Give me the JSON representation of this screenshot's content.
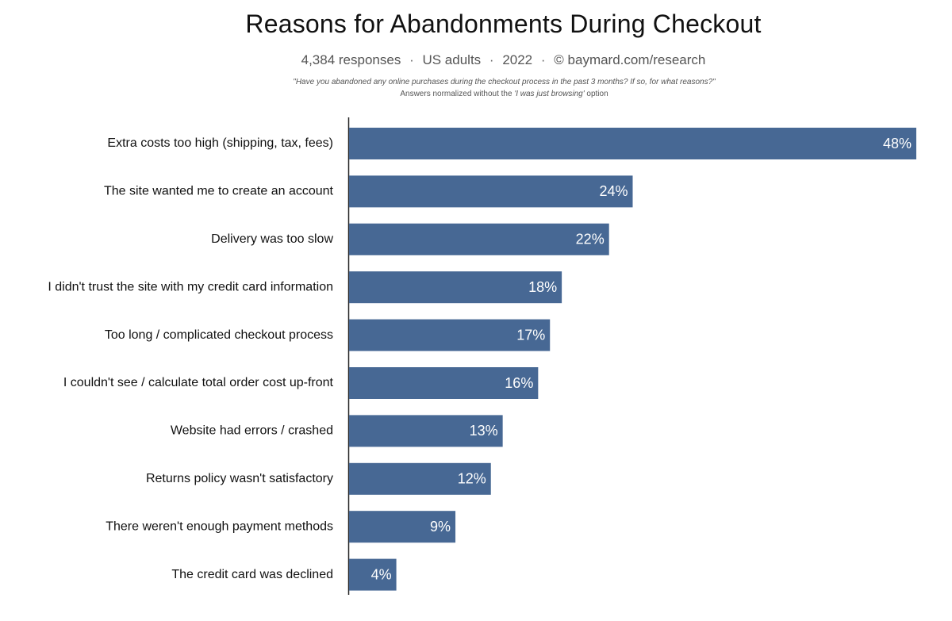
{
  "header": {
    "title": "Reasons for Abandonments During Checkout",
    "subtitle_parts": [
      "4,384 responses",
      "US adults",
      "2022",
      "© baymard.com/research"
    ],
    "separator": "·",
    "question": "\"Have you abandoned any online purchases during the checkout process in the past 3 months? If so, for what reasons?\"",
    "note_before": "Answers normalized without the ",
    "note_emphasis": "'I was just browsing'",
    "note_after": " option"
  },
  "chart_data": {
    "type": "bar",
    "orientation": "horizontal",
    "title": "Reasons for Abandonments During Checkout",
    "categories": [
      "Extra costs too high (shipping, tax, fees)",
      "The site wanted me to create an account",
      "Delivery was too slow",
      "I didn't trust the site with my credit card information",
      "Too long / complicated checkout process",
      "I couldn't see / calculate total order cost up-front",
      "Website had errors / crashed",
      "Returns policy wasn't satisfactory",
      "There weren't enough payment methods",
      "The credit card was declined"
    ],
    "values": [
      48,
      24,
      22,
      18,
      17,
      16,
      13,
      12,
      9,
      4
    ],
    "value_labels": [
      "48%",
      "24%",
      "22%",
      "18%",
      "17%",
      "16%",
      "13%",
      "12%",
      "9%",
      "4%"
    ],
    "xlim": [
      0,
      48
    ],
    "unit": "%",
    "grid": false,
    "legend": "none",
    "bar_color": "#476894"
  }
}
